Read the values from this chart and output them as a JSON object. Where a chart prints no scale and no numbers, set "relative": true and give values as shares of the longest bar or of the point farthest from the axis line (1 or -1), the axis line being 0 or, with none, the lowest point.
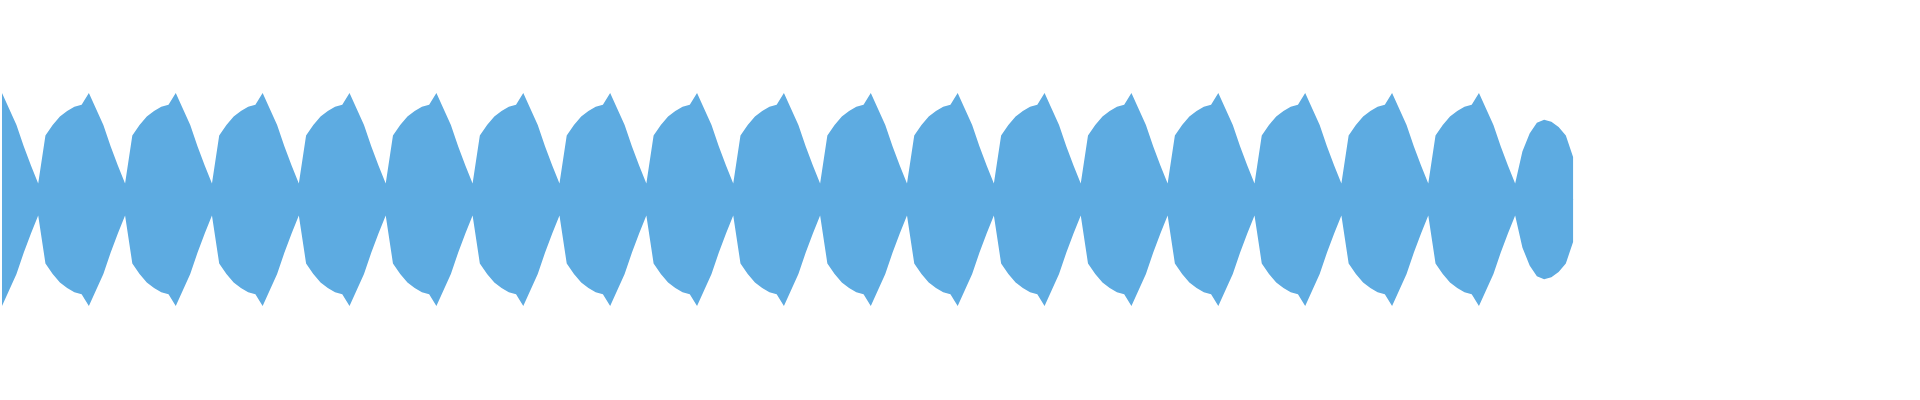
{
  "chart_data": {
    "type": "area",
    "relative": true,
    "ref_lines": [
      {
        "axis": "y",
        "value": 0,
        "color": "#5dabe1"
      }
    ],
    "categories": [
      null,
      null,
      null,
      null,
      null,
      null,
      null,
      null,
      null,
      null,
      null,
      null,
      null,
      null,
      null,
      null,
      null,
      null,
      null,
      null,
      null,
      null,
      null,
      null,
      null,
      null,
      null,
      null,
      null,
      null,
      null,
      null,
      null,
      null,
      null,
      null,
      null,
      null,
      null,
      null,
      null,
      null,
      null,
      null,
      null,
      null,
      null,
      null,
      null,
      null,
      null,
      null,
      null,
      null,
      null,
      null,
      null,
      null,
      null,
      null,
      null,
      null,
      null,
      null,
      null,
      null,
      null,
      null,
      null,
      null,
      null,
      null,
      null,
      null,
      null,
      null,
      null,
      null,
      null,
      null,
      null,
      null,
      null,
      null,
      null,
      null,
      null,
      null,
      null,
      null,
      null,
      null,
      null,
      null,
      null,
      null,
      null,
      null,
      null,
      null,
      null,
      null,
      null,
      null,
      null,
      null,
      null,
      null,
      null,
      null,
      null,
      null,
      null,
      null,
      null,
      null,
      null,
      null,
      null,
      null,
      null,
      null,
      null,
      null,
      null,
      null,
      null,
      null,
      null,
      null,
      null,
      null,
      null,
      null,
      null,
      null,
      null,
      null,
      null,
      null,
      null,
      null,
      null,
      null,
      null,
      null,
      null,
      null,
      null,
      null,
      null,
      null,
      null,
      null,
      null,
      null,
      null,
      null,
      null,
      null,
      null,
      null,
      null,
      null,
      null,
      null,
      null,
      null,
      null,
      null,
      null,
      null,
      null,
      null,
      null,
      null,
      null,
      null,
      null,
      null,
      null,
      null,
      null,
      null,
      null,
      null,
      null,
      null,
      null,
      null,
      null,
      null,
      null,
      null,
      null,
      null,
      null,
      null,
      null,
      null,
      null,
      null,
      null,
      null,
      null,
      null,
      null,
      null,
      null,
      null,
      null,
      null,
      null,
      null,
      null,
      null,
      null,
      null
    ],
    "series": [
      {
        "color": "#5dabe1",
        "values": [
          1.0,
          0.85,
          0.7,
          0.5,
          0.32,
          0.15,
          0.6,
          0.7,
          0.78,
          0.83,
          0.87,
          0.89,
          1.0,
          0.85,
          0.7,
          0.5,
          0.32,
          0.15,
          0.6,
          0.7,
          0.78,
          0.83,
          0.87,
          0.89,
          1.0,
          0.85,
          0.7,
          0.5,
          0.32,
          0.15,
          0.6,
          0.7,
          0.78,
          0.83,
          0.87,
          0.89,
          1.0,
          0.85,
          0.7,
          0.5,
          0.32,
          0.15,
          0.6,
          0.7,
          0.78,
          0.83,
          0.87,
          0.89,
          1.0,
          0.85,
          0.7,
          0.5,
          0.32,
          0.15,
          0.6,
          0.7,
          0.78,
          0.83,
          0.87,
          0.89,
          1.0,
          0.85,
          0.7,
          0.5,
          0.32,
          0.15,
          0.6,
          0.7,
          0.78,
          0.83,
          0.87,
          0.89,
          1.0,
          0.85,
          0.7,
          0.5,
          0.32,
          0.15,
          0.6,
          0.7,
          0.78,
          0.83,
          0.87,
          0.89,
          1.0,
          0.85,
          0.7,
          0.5,
          0.32,
          0.15,
          0.6,
          0.7,
          0.78,
          0.83,
          0.87,
          0.89,
          1.0,
          0.85,
          0.7,
          0.5,
          0.32,
          0.15,
          0.6,
          0.7,
          0.78,
          0.83,
          0.87,
          0.89,
          1.0,
          0.85,
          0.7,
          0.5,
          0.32,
          0.15,
          0.6,
          0.7,
          0.78,
          0.83,
          0.87,
          0.89,
          1.0,
          0.85,
          0.7,
          0.5,
          0.32,
          0.15,
          0.6,
          0.7,
          0.78,
          0.83,
          0.87,
          0.89,
          1.0,
          0.85,
          0.7,
          0.5,
          0.32,
          0.15,
          0.6,
          0.7,
          0.78,
          0.83,
          0.87,
          0.89,
          1.0,
          0.85,
          0.7,
          0.5,
          0.32,
          0.15,
          0.6,
          0.7,
          0.78,
          0.83,
          0.87,
          0.89,
          1.0,
          0.85,
          0.7,
          0.5,
          0.32,
          0.15,
          0.6,
          0.7,
          0.78,
          0.83,
          0.87,
          0.89,
          1.0,
          0.85,
          0.7,
          0.5,
          0.32,
          0.15,
          0.6,
          0.7,
          0.78,
          0.83,
          0.87,
          0.89,
          1.0,
          0.85,
          0.7,
          0.5,
          0.32,
          0.15,
          0.6,
          0.7,
          0.78,
          0.83,
          0.87,
          0.89,
          1.0,
          0.85,
          0.7,
          0.5,
          0.32,
          0.15,
          0.6,
          0.7,
          0.78,
          0.83,
          0.87,
          0.89,
          1.0,
          0.85,
          0.7,
          0.5,
          0.32,
          0.15,
          0.45,
          0.62,
          0.72,
          0.75,
          0.73,
          0.68,
          0.6,
          0.4
        ]
      },
      {
        "color": "#5dabe1",
        "values": [
          -1.0,
          -0.85,
          -0.7,
          -0.5,
          -0.32,
          -0.15,
          -0.6,
          -0.7,
          -0.78,
          -0.83,
          -0.87,
          -0.89,
          -1.0,
          -0.85,
          -0.7,
          -0.5,
          -0.32,
          -0.15,
          -0.6,
          -0.7,
          -0.78,
          -0.83,
          -0.87,
          -0.89,
          -1.0,
          -0.85,
          -0.7,
          -0.5,
          -0.32,
          -0.15,
          -0.6,
          -0.7,
          -0.78,
          -0.83,
          -0.87,
          -0.89,
          -1.0,
          -0.85,
          -0.7,
          -0.5,
          -0.32,
          -0.15,
          -0.6,
          -0.7,
          -0.78,
          -0.83,
          -0.87,
          -0.89,
          -1.0,
          -0.85,
          -0.7,
          -0.5,
          -0.32,
          -0.15,
          -0.6,
          -0.7,
          -0.78,
          -0.83,
          -0.87,
          -0.89,
          -1.0,
          -0.85,
          -0.7,
          -0.5,
          -0.32,
          -0.15,
          -0.6,
          -0.7,
          -0.78,
          -0.83,
          -0.87,
          -0.89,
          -1.0,
          -0.85,
          -0.7,
          -0.5,
          -0.32,
          -0.15,
          -0.6,
          -0.7,
          -0.78,
          -0.83,
          -0.87,
          -0.89,
          -1.0,
          -0.85,
          -0.7,
          -0.5,
          -0.32,
          -0.15,
          -0.6,
          -0.7,
          -0.78,
          -0.83,
          -0.87,
          -0.89,
          -1.0,
          -0.85,
          -0.7,
          -0.5,
          -0.32,
          -0.15,
          -0.6,
          -0.7,
          -0.78,
          -0.83,
          -0.87,
          -0.89,
          -1.0,
          -0.85,
          -0.7,
          -0.5,
          -0.32,
          -0.15,
          -0.6,
          -0.7,
          -0.78,
          -0.83,
          -0.87,
          -0.89,
          -1.0,
          -0.85,
          -0.7,
          -0.5,
          -0.32,
          -0.15,
          -0.6,
          -0.7,
          -0.78,
          -0.83,
          -0.87,
          -0.89,
          -1.0,
          -0.85,
          -0.7,
          -0.5,
          -0.32,
          -0.15,
          -0.6,
          -0.7,
          -0.78,
          -0.83,
          -0.87,
          -0.89,
          -1.0,
          -0.85,
          -0.7,
          -0.5,
          -0.32,
          -0.15,
          -0.6,
          -0.7,
          -0.78,
          -0.83,
          -0.87,
          -0.89,
          -1.0,
          -0.85,
          -0.7,
          -0.5,
          -0.32,
          -0.15,
          -0.6,
          -0.7,
          -0.78,
          -0.83,
          -0.87,
          -0.89,
          -1.0,
          -0.85,
          -0.7,
          -0.5,
          -0.32,
          -0.15,
          -0.6,
          -0.7,
          -0.78,
          -0.83,
          -0.87,
          -0.89,
          -1.0,
          -0.85,
          -0.7,
          -0.5,
          -0.32,
          -0.15,
          -0.6,
          -0.7,
          -0.78,
          -0.83,
          -0.87,
          -0.89,
          -1.0,
          -0.85,
          -0.7,
          -0.5,
          -0.32,
          -0.15,
          -0.6,
          -0.7,
          -0.78,
          -0.83,
          -0.87,
          -0.89,
          -1.0,
          -0.85,
          -0.7,
          -0.5,
          -0.32,
          -0.15,
          -0.45,
          -0.62,
          -0.72,
          -0.75,
          -0.73,
          -0.68,
          -0.6,
          -0.4
        ]
      }
    ]
  }
}
